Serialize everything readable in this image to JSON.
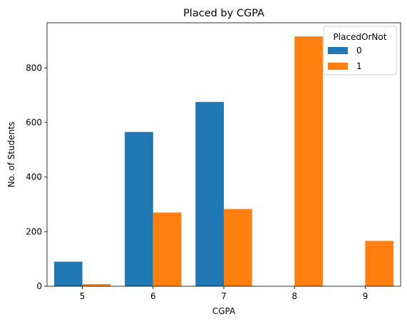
{
  "chart_data": {
    "type": "bar",
    "title": "Placed by CGPA",
    "xlabel": "CGPA",
    "ylabel": "No. of Students",
    "categories": [
      "5",
      "6",
      "7",
      "8",
      "9"
    ],
    "series": [
      {
        "name": "0",
        "color": "#1f77b4",
        "values": [
          90,
          565,
          675,
          0,
          0
        ]
      },
      {
        "name": "1",
        "color": "#ff7f0e",
        "values": [
          8,
          270,
          283,
          915,
          166
        ]
      }
    ],
    "ylim": [
      0,
      965
    ],
    "yticks": [
      0,
      200,
      400,
      600,
      800
    ],
    "grid": false,
    "legend": {
      "title": "PlacedOrNot",
      "placement": "top-right"
    }
  }
}
